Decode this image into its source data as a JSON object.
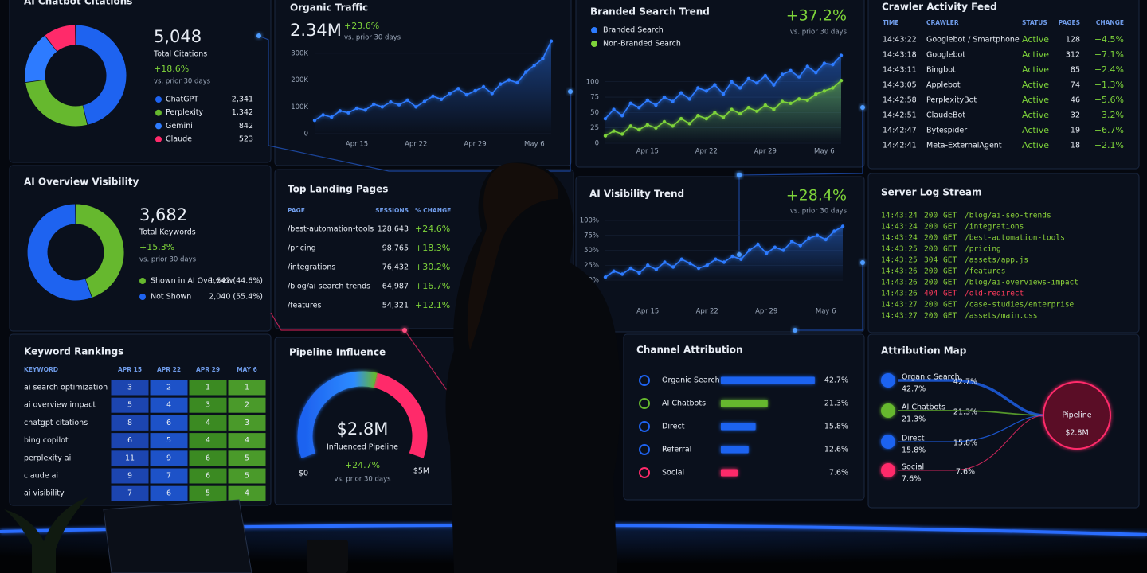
{
  "citations": {
    "title": "AI Chatbot Citations",
    "total": "5,048",
    "total_label": "Total Citations",
    "change": "+18.6%",
    "period": "vs. prior 30 days",
    "items": [
      {
        "name": "ChatGPT",
        "value": 2341,
        "label": "2,341",
        "color": "#1e63f0"
      },
      {
        "name": "Perplexity",
        "value": 1342,
        "label": "1,342",
        "color": "#66b82e"
      },
      {
        "name": "Gemini",
        "value": 842,
        "color": "#2d7bff"
      },
      {
        "name": "Claude",
        "value": 523,
        "color": "#ff2a6a"
      }
    ]
  },
  "traffic": {
    "title": "Organic Traffic",
    "value": "2.34M",
    "change": "+23.6%",
    "period": "vs. prior 30 days",
    "color": "#2d7bff",
    "x": [
      null,
      null,
      null,
      null,
      null,
      "Apr 15",
      null,
      null,
      null,
      null,
      null,
      null,
      "Apr 22",
      null,
      null,
      null,
      null,
      null,
      null,
      "Apr 29",
      null,
      null,
      null,
      null,
      null,
      null,
      "May 6",
      null,
      null
    ],
    "values": [
      50000,
      70000,
      62000,
      85000,
      78000,
      95000,
      88000,
      110000,
      100000,
      118000,
      108000,
      125000,
      100000,
      120000,
      140000,
      128000,
      150000,
      168000,
      145000,
      160000,
      175000,
      150000,
      185000,
      200000,
      190000,
      230000,
      255000,
      280000,
      345000
    ],
    "ylim": [
      0,
      350000
    ],
    "yticks": [
      0,
      {
        "value": 100000,
        "label": "100K"
      },
      {
        "value": 200000,
        "label": "200K"
      },
      {
        "value": 300000,
        "label": "300K"
      }
    ]
  },
  "branded": {
    "title": "Branded Search Trend",
    "change": "+37.2%",
    "period": "vs. prior 30 days",
    "x": [
      null,
      null,
      null,
      null,
      null,
      "Apr 15",
      null,
      null,
      null,
      null,
      null,
      null,
      "Apr 22",
      null,
      null,
      null,
      null,
      null,
      null,
      "Apr 29",
      null,
      null,
      null,
      null,
      null,
      null,
      "May 6",
      null,
      null
    ],
    "series": [
      {
        "name": "Branded Search",
        "color": "#2d7bff",
        "values": [
          40,
          55,
          45,
          65,
          58,
          70,
          62,
          75,
          68,
          82,
          72,
          90,
          85,
          95,
          80,
          100,
          90,
          105,
          98,
          110,
          95,
          112,
          118,
          108,
          125,
          115,
          130,
          128,
          143
        ]
      },
      {
        "name": "Non-Branded Search",
        "color": "#7ed33a",
        "values": [
          12,
          20,
          15,
          28,
          22,
          30,
          25,
          35,
          28,
          40,
          32,
          45,
          40,
          50,
          42,
          55,
          48,
          58,
          52,
          62,
          55,
          68,
          65,
          72,
          70,
          80,
          85,
          90,
          102
        ]
      }
    ],
    "ylim": [
      0,
      145
    ],
    "yticks": [
      0,
      25,
      50,
      75,
      100
    ]
  },
  "crawler": {
    "title": "Crawler Activity Feed",
    "headers": [
      "TIME",
      "CRAWLER",
      "STATUS",
      "PAGES",
      "CHANGE"
    ],
    "rows": [
      [
        "14:43:22",
        "Googlebot / Smartphone",
        "Active",
        128,
        "+4.5%"
      ],
      [
        "14:43:18",
        "Googlebot",
        "Active",
        312,
        "+7.1%"
      ],
      [
        "14:43:11",
        "Bingbot",
        "Active",
        85,
        "+2.4%"
      ],
      [
        "14:43:05",
        "Applebot",
        "Active",
        74,
        "+1.3%"
      ],
      [
        "14:42:58",
        "PerplexityBot",
        "Active",
        46,
        "+5.6%"
      ],
      [
        "14:42:51",
        "ClaudeBot",
        "Active",
        32,
        "+3.2%"
      ],
      [
        "14:42:47",
        "Bytespider",
        "Active",
        19,
        "+6.7%"
      ],
      [
        "14:42:41",
        "Meta-ExternalAgent",
        "Active",
        18,
        "+2.1%"
      ]
    ]
  },
  "overview": {
    "title": "AI Overview Visibility",
    "total": "3,682",
    "total_label": "Total Keywords",
    "change": "+15.3%",
    "period": "vs. prior 30 days",
    "items": [
      {
        "name": "Shown in AI Overview",
        "value": 1642,
        "label": "1,642 (44.6%)",
        "color": "#66b82e"
      },
      {
        "name": "Not Shown",
        "value": 2040,
        "label": "2,040 (55.4%)",
        "color": "#1e63f0"
      }
    ]
  },
  "landing": {
    "title": "Top Landing Pages",
    "headers": [
      "PAGE",
      "SESSIONS",
      "% CHANGE"
    ],
    "rows": [
      [
        "/best-automation-tools",
        "128,643",
        "+24.6%"
      ],
      [
        "/pricing",
        "98,765",
        "+18.3%"
      ],
      [
        "/integrations",
        "76,432",
        "+30.2%"
      ],
      [
        "/blog/ai-search-trends",
        "64,987",
        "+16.7%"
      ],
      [
        "/features",
        "54,321",
        "+12.1%"
      ]
    ]
  },
  "visibility": {
    "title": "AI Visibility Trend",
    "change": "+28.4%",
    "period": "vs. prior 30 days",
    "color": "#2d7bff",
    "x": [
      null,
      null,
      null,
      null,
      null,
      "Apr 15",
      null,
      null,
      null,
      null,
      null,
      null,
      "Apr 22",
      null,
      null,
      null,
      null,
      null,
      null,
      "Apr 29",
      null,
      null,
      null,
      null,
      null,
      null,
      "May 6",
      null,
      null
    ],
    "values": [
      5,
      15,
      10,
      20,
      12,
      25,
      18,
      30,
      22,
      35,
      28,
      20,
      25,
      35,
      30,
      40,
      35,
      50,
      60,
      45,
      55,
      50,
      65,
      58,
      70,
      75,
      68,
      82,
      90
    ],
    "ylim": [
      0,
      100
    ],
    "yticks": [
      {
        "value": 0,
        "label": "0%"
      },
      {
        "value": 25,
        "label": "25%"
      },
      {
        "value": 50,
        "label": "50%"
      },
      {
        "value": 75,
        "label": "75%"
      },
      {
        "value": 100,
        "label": "100%"
      }
    ]
  },
  "server": {
    "title": "Server Log Stream",
    "lines": [
      [
        "14:43:24",
        "200",
        "GET",
        "/blog/ai-seo-trends"
      ],
      [
        "14:43:24",
        "200",
        "GET",
        "/integrations"
      ],
      [
        "14:43:24",
        "200",
        "GET",
        "/best-automation-tools"
      ],
      [
        "14:43:25",
        "200",
        "GET",
        "/pricing"
      ],
      [
        "14:43:25",
        "304",
        "GET",
        "/assets/app.js"
      ],
      [
        "14:43:26",
        "200",
        "GET",
        "/features"
      ],
      [
        "14:43:26",
        "200",
        "GET",
        "/blog/ai-overviews-impact"
      ],
      [
        "14:43:26",
        "404",
        "GET",
        "/old-redirect"
      ],
      [
        "14:43:27",
        "200",
        "GET",
        "/case-studies/enterprise"
      ],
      [
        "14:43:27",
        "200",
        "GET",
        "/assets/main.css"
      ]
    ]
  },
  "keywords": {
    "title": "Keyword Rankings",
    "headers": [
      "KEYWORD",
      "APR 15",
      "APR 22",
      "APR 29",
      "MAY 6"
    ],
    "rows": [
      {
        "keyword": "ai search optimization",
        "ranks": [
          3,
          2,
          1,
          1
        ]
      },
      {
        "keyword": "ai overview impact",
        "ranks": [
          5,
          4,
          3,
          2
        ]
      },
      {
        "keyword": "chatgpt citations",
        "ranks": [
          8,
          6,
          4,
          3
        ]
      },
      {
        "keyword": "bing copilot",
        "ranks": [
          6,
          5,
          4,
          4
        ]
      },
      {
        "keyword": "perplexity ai",
        "ranks": [
          11,
          9,
          6,
          5
        ]
      },
      {
        "keyword": "claude ai",
        "ranks": [
          9,
          7,
          6,
          5
        ]
      },
      {
        "keyword": "ai visibility",
        "ranks": [
          7,
          6,
          5,
          4
        ]
      }
    ]
  },
  "pipeline": {
    "title": "Pipeline Influence",
    "value": 2800000,
    "value_label": "$2.8M",
    "caption": "Influenced Pipeline",
    "change": "+24.7%",
    "period": "vs. prior 30 days",
    "min": {
      "value": 0,
      "label": "$0"
    },
    "max": {
      "value": 5000000,
      "label": "$5M"
    }
  },
  "channels": {
    "title": "Channel Attribution",
    "items": [
      {
        "name": "Organic Search",
        "value": 42.7,
        "label": "42.7%",
        "color": "#1e63f0"
      },
      {
        "name": "AI Chatbots",
        "value": 21.3,
        "label": "21.3%",
        "color": "#66b82e"
      },
      {
        "name": "Direct",
        "value": 15.8,
        "label": "15.8%",
        "color": "#1e63f0"
      },
      {
        "name": "Referral",
        "value": 12.6,
        "label": "12.6%",
        "color": "#1e63f0"
      },
      {
        "name": "Social",
        "value": 7.6,
        "label": "7.6%",
        "color": "#ff2a6a"
      }
    ]
  },
  "attribution": {
    "title": "Attribution Map",
    "target": "Pipeline",
    "target_value": "$2.8M",
    "nodes": [
      {
        "name": "Organic Search",
        "value": 42.7,
        "label": "42.7%",
        "color": "#1e63f0"
      },
      {
        "name": "AI Chatbots",
        "value": 21.3,
        "label": "21.3%",
        "color": "#66b82e"
      },
      {
        "name": "Direct",
        "value": 15.8,
        "label": "15.8%",
        "color": "#1e63f0"
      },
      {
        "name": "Social",
        "value": 7.6,
        "label": "7.6%",
        "color": "#ff2a6a"
      }
    ]
  }
}
